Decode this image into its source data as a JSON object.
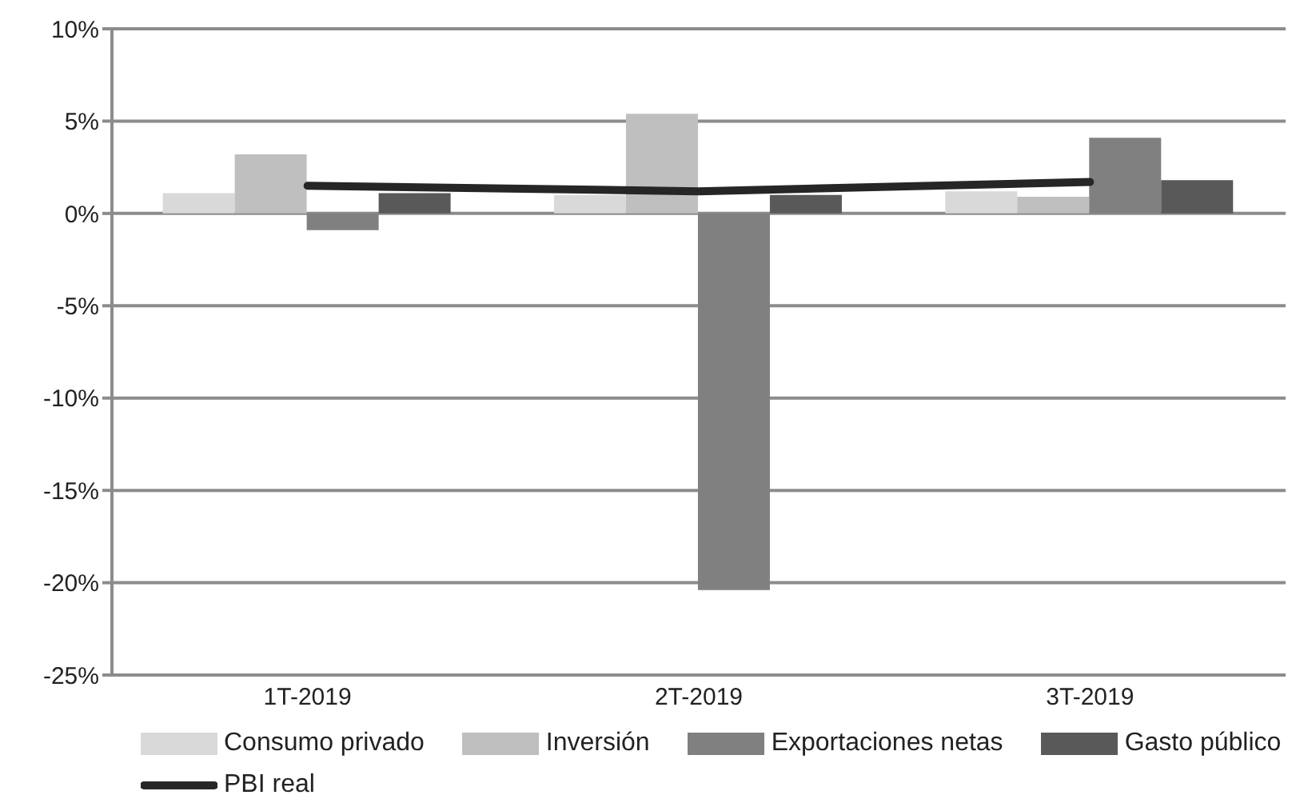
{
  "chart_data": {
    "type": "bar",
    "categories": [
      "1T-2019",
      "2T-2019",
      "3T-2019"
    ],
    "series": [
      {
        "name": "Consumo privado",
        "color": "#d9d9d9",
        "values": [
          1.1,
          1.0,
          1.2
        ]
      },
      {
        "name": "Inversión",
        "color": "#bfbfbf",
        "values": [
          3.2,
          5.4,
          0.9
        ]
      },
      {
        "name": "Exportaciones netas",
        "color": "#808080",
        "values": [
          -0.9,
          -20.4,
          4.1
        ]
      },
      {
        "name": "Gasto público",
        "color": "#595959",
        "values": [
          1.1,
          1.0,
          1.8
        ]
      },
      {
        "name": "PBI real",
        "type": "line",
        "color": "#262626",
        "values": [
          1.5,
          1.2,
          1.7
        ]
      }
    ],
    "ylim": [
      -25,
      10
    ],
    "yticks": [
      {
        "value": -25,
        "label": "-25%"
      },
      {
        "value": -20,
        "label": "-20%"
      },
      {
        "value": -15,
        "label": "-15%"
      },
      {
        "value": -10,
        "label": "-10%"
      },
      {
        "value": -5,
        "label": "-5%"
      },
      {
        "value": 0,
        "label": "0%"
      },
      {
        "value": 5,
        "label": "5%"
      },
      {
        "value": 10,
        "label": "10%"
      }
    ],
    "grid": "y",
    "legend": "bottom",
    "marker": "none"
  }
}
